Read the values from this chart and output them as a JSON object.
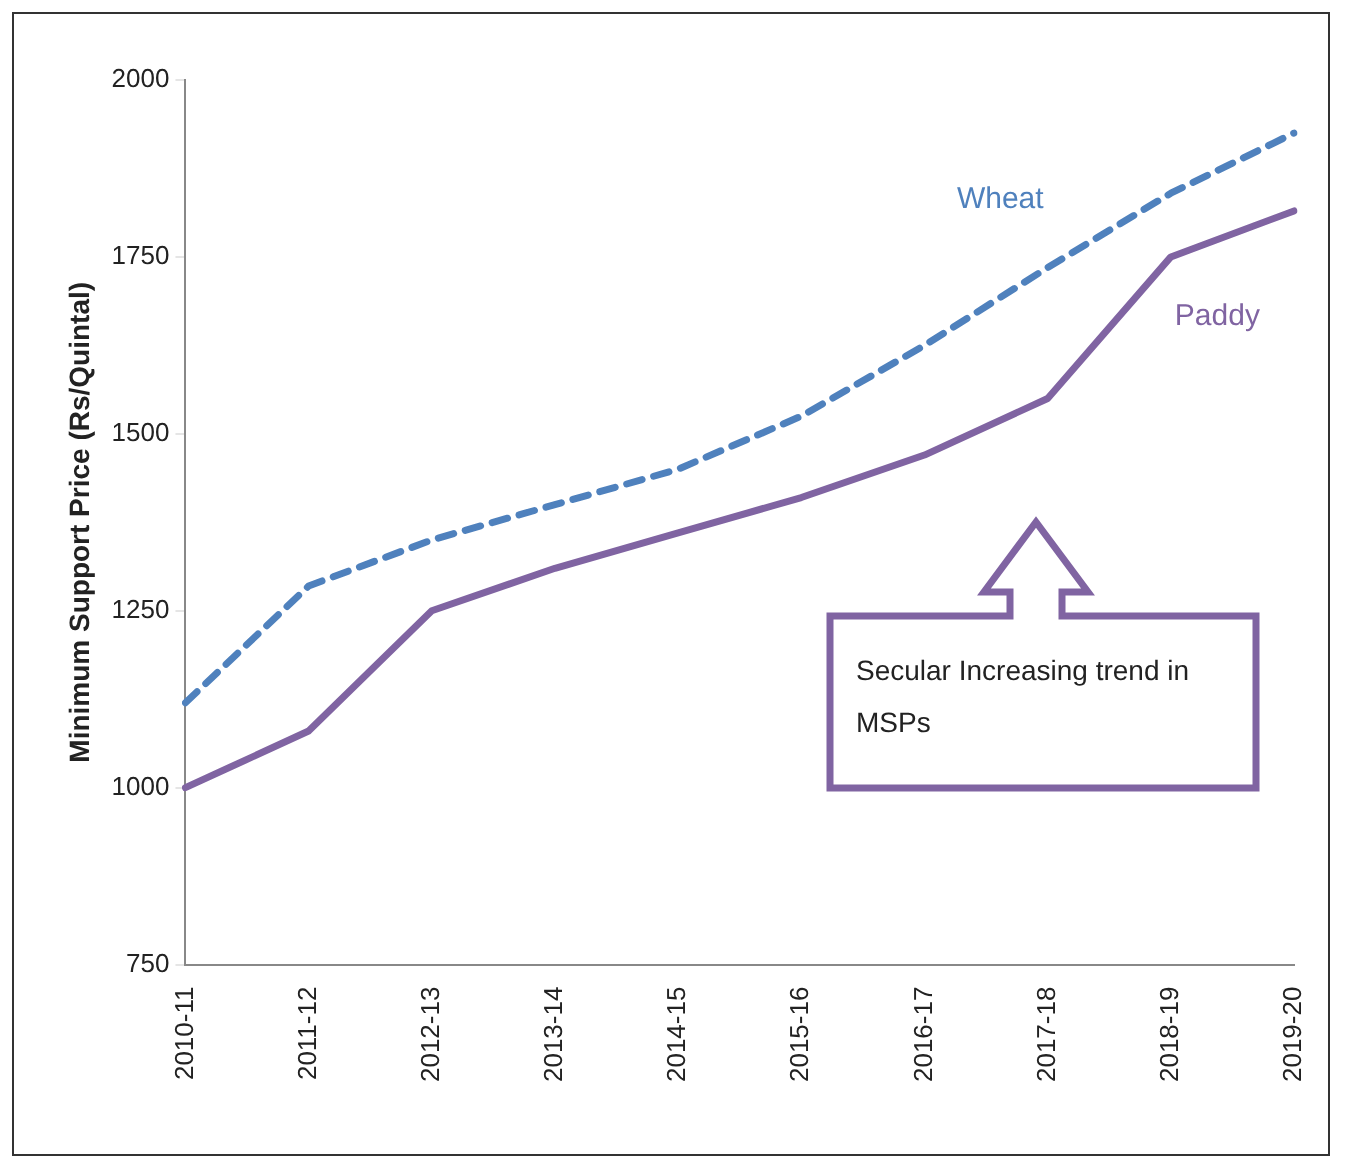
{
  "chart_data": {
    "type": "line",
    "ylabel": "Minimum Support Price (Rs/Quintal)",
    "categories": [
      "2010-11",
      "2011-12",
      "2012-13",
      "2013-14",
      "2014-15",
      "2015-16",
      "2016-17",
      "2017-18",
      "2018-19",
      "2019-20"
    ],
    "series": [
      {
        "name": "Wheat",
        "color": "#4f81bd",
        "line_style": "dashed",
        "values": [
          1120,
          1285,
          1350,
          1400,
          1450,
          1525,
          1625,
          1735,
          1840,
          1925
        ]
      },
      {
        "name": "Paddy",
        "color": "#8064a2",
        "line_style": "solid",
        "values": [
          1000,
          1080,
          1250,
          1310,
          1360,
          1410,
          1470,
          1550,
          1750,
          1815
        ]
      }
    ],
    "ylim": [
      750,
      2000
    ],
    "yticks": [
      750,
      1000,
      1250,
      1500,
      1750,
      2000
    ],
    "grid": false,
    "legend": false,
    "marker": "none",
    "annotations": [
      "Secular Increasing trend in MSPs"
    ]
  }
}
